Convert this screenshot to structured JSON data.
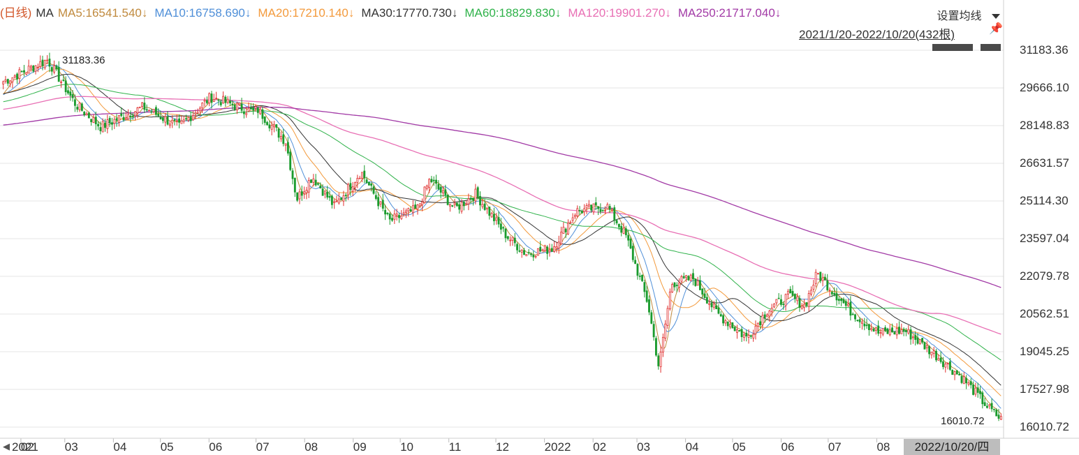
{
  "legend": {
    "period_label": "(日线)",
    "ma_label": "MA",
    "items": [
      {
        "text": "MA5:16541.540↓",
        "color": "#c08a3e"
      },
      {
        "text": "MA10:16758.690↓",
        "color": "#4f8fd8"
      },
      {
        "text": "MA20:17210.140↓",
        "color": "#f39a3c"
      },
      {
        "text": "MA30:17770.730↓",
        "color": "#333333"
      },
      {
        "text": "MA60:18829.830↓",
        "color": "#2fb24a"
      },
      {
        "text": "MA120:19901.270↓",
        "color": "#e86fb4"
      },
      {
        "text": "MA250:21717.040↓",
        "color": "#a23aa6"
      }
    ]
  },
  "controls": {
    "settings_label": "设置均线",
    "range_label": "2021/1/20-2022/10/20(432根)",
    "current_date": "2022/10/20/四",
    "scroll_left": "◀",
    "pin_icon": "pin-icon"
  },
  "chart_data": {
    "type": "candlestick",
    "title": "",
    "x_range": [
      "2021/1/20",
      "2022/10/20"
    ],
    "bar_count": 432,
    "y_ticks": [
      "31183.36",
      "29666.10",
      "28148.83",
      "26631.57",
      "25114.30",
      "23597.04",
      "22079.78",
      "20562.51",
      "19045.25",
      "17527.98",
      "16010.72"
    ],
    "x_ticks": [
      "2021",
      "02",
      "03",
      "04",
      "05",
      "06",
      "07",
      "08",
      "09",
      "10",
      "11",
      "12",
      "2022",
      "02",
      "03",
      "04",
      "05",
      "06",
      "07",
      "08"
    ],
    "annotations": {
      "high": "31183.36",
      "low": "16010.72"
    },
    "colors": {
      "up": "#e0302f",
      "down": "#1a9b2d",
      "grid": "#e4e4e4"
    },
    "price_path": [
      {
        "date": "2021/1/20",
        "value": 29900
      },
      {
        "date": "2021/2/18",
        "value": 30800
      },
      {
        "date": "2021/3/8",
        "value": 29000
      },
      {
        "date": "2021/3/24",
        "value": 28100
      },
      {
        "date": "2021/4/20",
        "value": 28900
      },
      {
        "date": "2021/5/13",
        "value": 28100
      },
      {
        "date": "2021/6/2",
        "value": 29300
      },
      {
        "date": "2021/6/29",
        "value": 28700
      },
      {
        "date": "2021/7/2",
        "value": 28800
      },
      {
        "date": "2021/7/20",
        "value": 27500
      },
      {
        "date": "2021/7/27",
        "value": 25200
      },
      {
        "date": "2021/8/6",
        "value": 26100
      },
      {
        "date": "2021/8/20",
        "value": 24900
      },
      {
        "date": "2021/9/6",
        "value": 26300
      },
      {
        "date": "2021/9/24",
        "value": 24300
      },
      {
        "date": "2021/10/12",
        "value": 24800
      },
      {
        "date": "2021/10/20",
        "value": 26000
      },
      {
        "date": "2021/11/5",
        "value": 24800
      },
      {
        "date": "2021/11/18",
        "value": 25400
      },
      {
        "date": "2021/12/8",
        "value": 23700
      },
      {
        "date": "2021/12/20",
        "value": 23000
      },
      {
        "date": "2022/1/6",
        "value": 23200
      },
      {
        "date": "2022/1/21",
        "value": 24700
      },
      {
        "date": "2022/2/10",
        "value": 24900
      },
      {
        "date": "2022/2/22",
        "value": 23700
      },
      {
        "date": "2022/3/8",
        "value": 21000
      },
      {
        "date": "2022/3/15",
        "value": 18400
      },
      {
        "date": "2022/3/23",
        "value": 21800
      },
      {
        "date": "2022/4/6",
        "value": 22000
      },
      {
        "date": "2022/4/21",
        "value": 20600
      },
      {
        "date": "2022/5/10",
        "value": 19600
      },
      {
        "date": "2022/5/23",
        "value": 20700
      },
      {
        "date": "2022/6/6",
        "value": 21300
      },
      {
        "date": "2022/6/16",
        "value": 20900
      },
      {
        "date": "2022/6/24",
        "value": 22200
      },
      {
        "date": "2022/7/15",
        "value": 20700
      },
      {
        "date": "2022/8/2",
        "value": 19800
      },
      {
        "date": "2022/8/19",
        "value": 19900
      },
      {
        "date": "2022/9/6",
        "value": 19000
      },
      {
        "date": "2022/9/26",
        "value": 17900
      },
      {
        "date": "2022/10/11",
        "value": 16800
      },
      {
        "date": "2022/10/20",
        "value": 16280
      }
    ],
    "ma_endpoints": {
      "MA5": 16541.54,
      "MA10": 16758.69,
      "MA20": 17210.14,
      "MA30": 17770.73,
      "MA60": 18829.83,
      "MA120": 19901.27,
      "MA250": 21717.04
    }
  }
}
